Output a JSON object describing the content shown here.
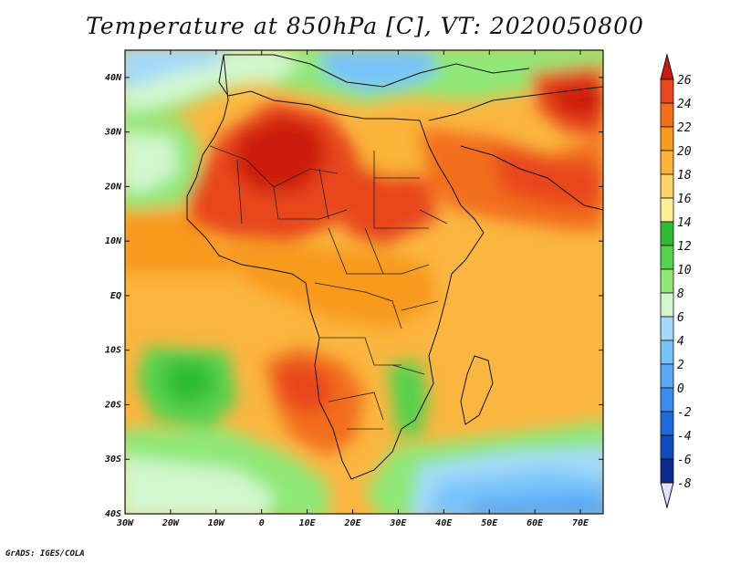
{
  "title": "Temperature at 850hPa [C], VT: 2020050800",
  "credit": "GrADS: IGES/COLA",
  "map": {
    "projection": "lat-lon",
    "lon_range": [
      -30,
      75
    ],
    "lat_range": [
      -40,
      45
    ],
    "lon_ticks": [
      "30W",
      "20W",
      "10W",
      "0",
      "10E",
      "20E",
      "30E",
      "40E",
      "50E",
      "60E",
      "70E"
    ],
    "lat_ticks": [
      "40N",
      "30N",
      "20N",
      "10N",
      "EQ",
      "10S",
      "20S",
      "30S",
      "40S"
    ],
    "field": "temperature at 850hPa (shaded)"
  },
  "colorbar": {
    "levels": [
      "26",
      "24",
      "22",
      "20",
      "18",
      "16",
      "14",
      "12",
      "10",
      "8",
      "6",
      "4",
      "2",
      "0",
      "-2",
      "-4",
      "-6",
      "-8"
    ],
    "colors": [
      "#e8461e",
      "#f26e1a",
      "#f89a1c",
      "#fbb338",
      "#fed168",
      "#feee96",
      "#2fbb34",
      "#57d24e",
      "#8fe877",
      "#d2f7ce",
      "#a3dafa",
      "#78c2fa",
      "#5aa8f6",
      "#3a8bef",
      "#1e6adc",
      "#0e4cbc",
      "#0b2b8c"
    ],
    "top_color": "#cc1a10",
    "bottom_color": "#e0e0ff"
  }
}
